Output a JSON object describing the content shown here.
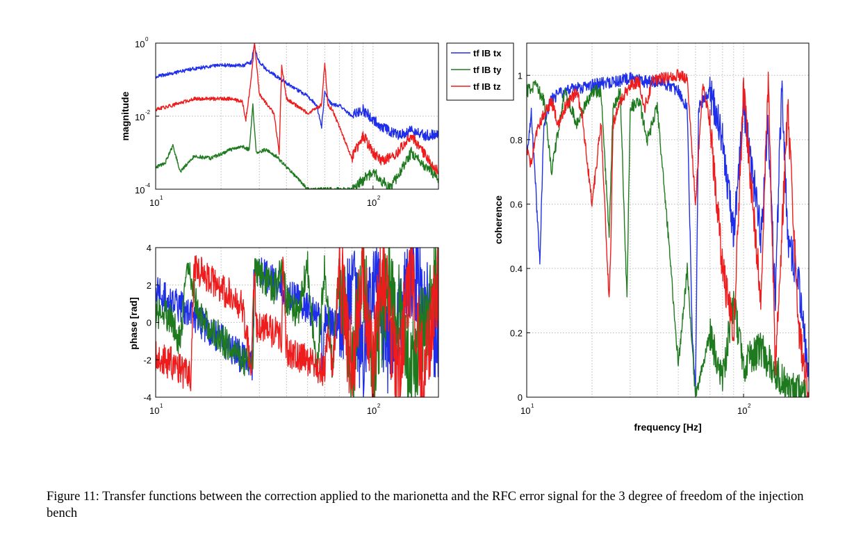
{
  "caption": "Figure 11: Transfer functions between the correction applied to the marionetta and the RFC error signal for the 3 degree of freedom of the injection bench",
  "legend": [
    "tf IB tx",
    "tf IB ty",
    "tf IB tz"
  ],
  "colors": {
    "tx": "#1f2ee8",
    "ty": "#1f7a1f",
    "tz": "#ee1c1c",
    "grid": "#b8b8b8"
  },
  "chart_data": [
    {
      "type": "line",
      "panel": "magnitude",
      "ylabel": "magnitude",
      "xlabel": "",
      "xscale": "log",
      "yscale": "log",
      "xlim": [
        10,
        200
      ],
      "ylim": [
        0.0001,
        1
      ],
      "xticks": [
        {
          "base": "10",
          "exp": "1",
          "value": 10
        },
        {
          "base": "10",
          "exp": "2",
          "value": 100
        }
      ],
      "yticks": [
        {
          "base": "10",
          "exp": "0",
          "value": 1
        },
        {
          "base": "10",
          "exp": "-2",
          "value": 0.01
        },
        {
          "base": "10",
          "exp": "-4",
          "value": 0.0001
        }
      ],
      "series": [
        {
          "name": "tf IB tx",
          "color": "tx",
          "x": [
            10,
            12,
            15,
            20,
            25,
            27.5,
            28.5,
            29.5,
            32,
            40,
            50,
            55,
            58,
            60,
            62,
            65,
            70,
            80,
            90,
            100,
            110,
            130,
            150,
            170,
            200
          ],
          "y": [
            0.12,
            0.15,
            0.2,
            0.25,
            0.24,
            0.3,
            0.9,
            0.35,
            0.2,
            0.08,
            0.035,
            0.02,
            0.005,
            0.05,
            0.03,
            0.02,
            0.02,
            0.01,
            0.015,
            0.008,
            0.005,
            0.003,
            0.004,
            0.003,
            0.003
          ]
        },
        {
          "name": "tf IB ty",
          "color": "ty",
          "x": [
            10,
            11,
            12,
            13,
            15,
            18,
            22,
            25,
            27,
            28,
            29,
            32,
            36,
            40,
            45,
            50,
            55,
            60,
            70,
            80,
            100,
            120,
            150,
            200
          ],
          "y": [
            0.0004,
            0.0005,
            0.0015,
            0.0003,
            0.0008,
            0.0007,
            0.0012,
            0.0015,
            0.0012,
            0.02,
            0.001,
            0.0012,
            0.0008,
            0.0004,
            0.0002,
            0.0001,
            0.0001,
            0.0001,
            0.0001,
            0.0001,
            0.0003,
            0.0001,
            0.001,
            0.0002
          ]
        },
        {
          "name": "tf IB tz",
          "color": "tz",
          "x": [
            10,
            12,
            15,
            18,
            22,
            25,
            26,
            27.5,
            28.5,
            30,
            35,
            37,
            38,
            40,
            50,
            58,
            60,
            62,
            65,
            70,
            80,
            90,
            100,
            110,
            130,
            150,
            170,
            200
          ],
          "y": [
            0.015,
            0.02,
            0.03,
            0.03,
            0.03,
            0.025,
            0.008,
            0.1,
            1,
            0.04,
            0.012,
            0.001,
            0.25,
            0.03,
            0.012,
            0.02,
            0.3,
            0.02,
            0.015,
            0.005,
            0.0007,
            0.003,
            0.001,
            0.0006,
            0.001,
            0.003,
            0.001,
            0.0003
          ]
        }
      ]
    },
    {
      "type": "line",
      "panel": "phase",
      "ylabel": "phase [rad]",
      "xlabel": "",
      "xscale": "log",
      "xlim": [
        10,
        200
      ],
      "ylim": [
        -4,
        4
      ],
      "xticks": [
        {
          "base": "10",
          "exp": "1",
          "value": 10
        },
        {
          "base": "10",
          "exp": "2",
          "value": 100
        }
      ],
      "yticks": [
        {
          "label": "4",
          "value": 4
        },
        {
          "label": "2",
          "value": 2
        },
        {
          "label": "0",
          "value": 0
        },
        {
          "label": "-2",
          "value": -2
        },
        {
          "label": "-4",
          "value": -4
        }
      ],
      "series": [
        {
          "name": "tf IB tx",
          "color": "tx",
          "x": [
            10,
            12,
            15,
            20,
            25,
            28,
            28.3,
            30,
            40,
            50,
            55,
            58,
            58.5,
            60,
            70,
            80,
            90,
            100,
            120,
            150,
            200
          ],
          "y": [
            1.6,
            1.1,
            0.3,
            -0.9,
            -1.9,
            -2.5,
            2.7,
            2.8,
            1.6,
            0.8,
            0.3,
            0.0,
            -2.8,
            0.2,
            -0.2,
            2.5,
            -2.5,
            2.8,
            -2.0,
            2.8,
            -1.0
          ]
        },
        {
          "name": "tf IB ty",
          "color": "ty",
          "x": [
            10,
            11,
            12,
            13,
            14,
            16,
            18,
            20,
            24,
            28,
            28.5,
            30,
            35,
            38,
            40,
            45,
            50,
            55,
            60,
            65,
            70,
            80,
            90,
            100,
            120,
            150,
            200
          ],
          "y": [
            0.4,
            0.5,
            0.0,
            -1.2,
            3.0,
            0.2,
            -0.4,
            -0.8,
            -1.8,
            -2.2,
            2.6,
            2.6,
            1.8,
            3.0,
            1.2,
            0.5,
            3.0,
            -2.5,
            3.0,
            -2.6,
            3.0,
            -2.8,
            3.0,
            -2.8,
            2.8,
            -2.8,
            2.8
          ]
        },
        {
          "name": "tf IB tz",
          "color": "tz",
          "x": [
            10,
            12,
            14.5,
            15,
            18,
            22,
            25,
            26.5,
            27.5,
            28.5,
            29,
            32,
            36,
            38,
            38.5,
            40,
            50,
            55,
            60,
            62,
            65,
            70,
            80,
            90,
            100,
            110,
            130,
            150,
            170,
            200
          ],
          "y": [
            -1.9,
            -2.2,
            -3.0,
            3.0,
            2.2,
            1.5,
            0.8,
            -1.0,
            -2.6,
            3.0,
            -0.3,
            -0.4,
            -0.6,
            -1.0,
            2.8,
            -1.5,
            -2.0,
            -2.3,
            -2.6,
            0.0,
            -2.8,
            3.0,
            -2.8,
            2.8,
            -2.9,
            3.0,
            -3.0,
            3.0,
            -3.0,
            2.8
          ]
        }
      ]
    },
    {
      "type": "line",
      "panel": "coherence",
      "ylabel": "coherence",
      "xlabel": "frequency [Hz]",
      "xscale": "log",
      "xlim": [
        10,
        200
      ],
      "ylim": [
        0,
        1.1
      ],
      "xticks": [
        {
          "base": "10",
          "exp": "1",
          "value": 10
        },
        {
          "base": "10",
          "exp": "2",
          "value": 100
        }
      ],
      "yticks": [
        {
          "label": "1",
          "value": 1
        },
        {
          "label": "0.8",
          "value": 0.8
        },
        {
          "label": "0.6",
          "value": 0.6
        },
        {
          "label": "0.4",
          "value": 0.4
        },
        {
          "label": "0.2",
          "value": 0.2
        },
        {
          "label": "0",
          "value": 0
        }
      ],
      "series": [
        {
          "name": "tf IB tx",
          "color": "tx",
          "x": [
            10,
            10.5,
            11,
            11.5,
            12,
            13,
            15,
            20,
            25,
            30,
            35,
            40,
            45,
            50,
            55,
            58,
            60,
            62,
            70,
            80,
            90,
            100,
            110,
            120,
            130,
            140,
            150,
            160,
            180,
            200
          ],
          "y": [
            0.75,
            0.88,
            0.65,
            0.42,
            0.85,
            0.93,
            0.95,
            0.97,
            0.98,
            0.99,
            0.98,
            0.98,
            0.97,
            0.95,
            0.9,
            0.2,
            0.0,
            0.9,
            0.95,
            0.8,
            0.5,
            0.9,
            0.7,
            0.5,
            0.85,
            0.3,
            0.97,
            0.5,
            0.35,
            0.05
          ]
        },
        {
          "name": "tf IB ty",
          "color": "ty",
          "x": [
            10,
            11,
            12,
            13,
            15,
            17,
            20,
            22,
            24,
            25,
            27,
            29,
            30,
            33,
            36,
            40,
            45,
            50,
            55,
            60,
            70,
            80,
            90,
            100,
            120,
            150,
            200
          ],
          "y": [
            0.95,
            0.97,
            0.92,
            0.7,
            0.95,
            0.85,
            0.95,
            0.95,
            0.5,
            0.9,
            0.95,
            0.3,
            0.9,
            0.92,
            0.8,
            0.9,
            0.5,
            0.1,
            0.4,
            0.0,
            0.2,
            0.05,
            0.3,
            0.1,
            0.15,
            0.05,
            0.0
          ]
        },
        {
          "name": "tf IB tz",
          "color": "tz",
          "x": [
            10,
            10.5,
            11,
            12,
            13,
            14,
            15,
            17,
            18,
            20,
            22,
            24,
            24.5,
            25,
            27,
            30,
            33,
            35,
            38,
            40,
            45,
            50,
            55,
            60,
            65,
            70,
            80,
            90,
            100,
            110,
            120,
            130,
            140,
            150,
            160,
            180,
            200
          ],
          "y": [
            0.78,
            0.72,
            0.82,
            0.88,
            0.92,
            0.85,
            0.9,
            0.95,
            0.88,
            0.6,
            0.85,
            0.3,
            0.5,
            0.85,
            0.92,
            0.97,
            0.98,
            0.9,
            0.98,
            0.99,
            0.99,
            1.0,
            0.99,
            0.6,
            0.98,
            0.85,
            0.4,
            0.2,
            0.95,
            0.6,
            0.3,
            0.97,
            0.1,
            0.5,
            0.9,
            0.2,
            0.0
          ]
        }
      ]
    }
  ]
}
